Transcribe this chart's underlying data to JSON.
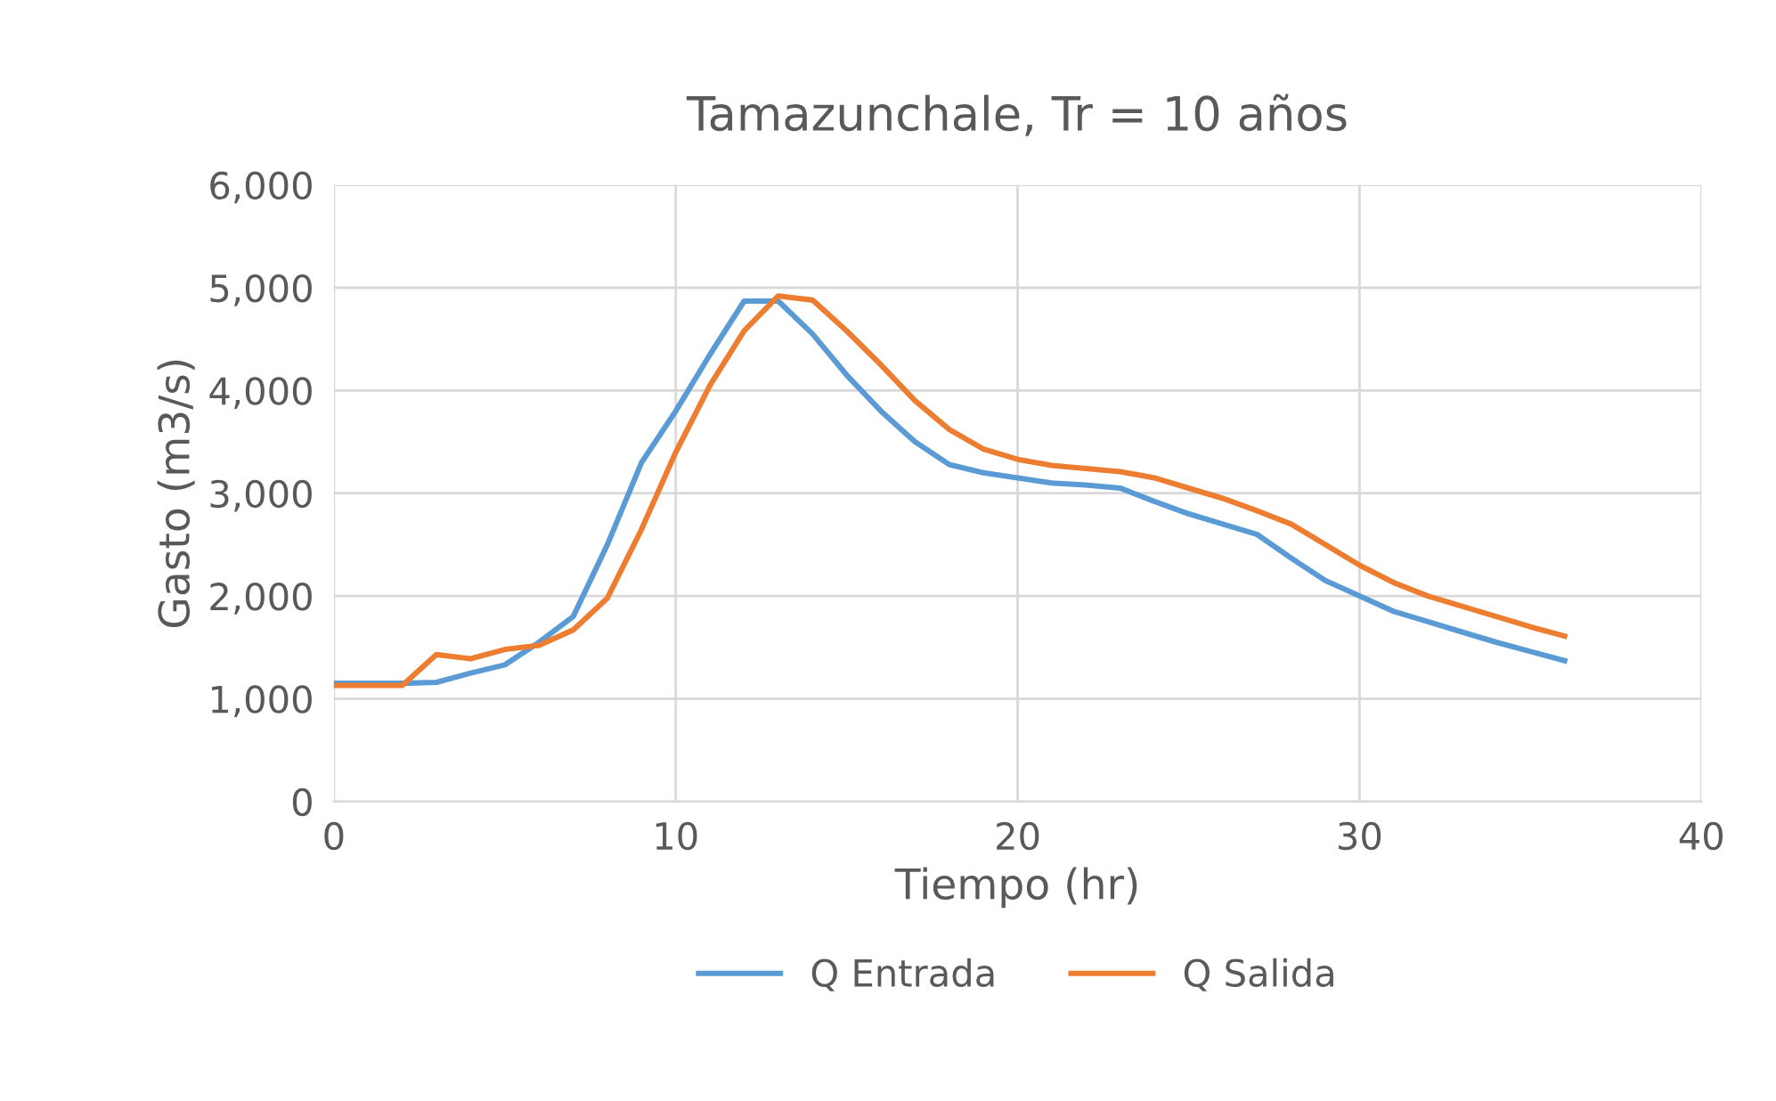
{
  "chart_data": {
    "type": "line",
    "title": "Tamazunchale, Tr = 10 años",
    "xlabel": "Tiempo (hr)",
    "ylabel": "Gasto (m3/s)",
    "x": [
      0,
      1,
      2,
      3,
      4,
      5,
      6,
      7,
      8,
      9,
      10,
      11,
      12,
      13,
      14,
      15,
      16,
      17,
      18,
      19,
      20,
      21,
      22,
      23,
      24,
      25,
      26,
      27,
      28,
      29,
      30,
      31,
      32,
      33,
      34,
      35,
      36
    ],
    "series": [
      {
        "name": "Q Entrada",
        "color": "#5b9bd5",
        "values": [
          1150,
          1150,
          1150,
          1160,
          1250,
          1330,
          1550,
          1800,
          2500,
          3300,
          3800,
          4350,
          4870,
          4870,
          4550,
          4150,
          3800,
          3500,
          3280,
          3200,
          3150,
          3100,
          3080,
          3050,
          2920,
          2800,
          2700,
          2600,
          2370,
          2150,
          2000,
          1850,
          1750,
          1650,
          1550,
          1460,
          1370
        ]
      },
      {
        "name": "Q Salida",
        "color": "#ed7d31",
        "values": [
          1130,
          1130,
          1130,
          1430,
          1390,
          1480,
          1520,
          1670,
          1980,
          2650,
          3400,
          4050,
          4580,
          4920,
          4880,
          4580,
          4250,
          3900,
          3620,
          3430,
          3330,
          3270,
          3240,
          3210,
          3150,
          3050,
          2950,
          2830,
          2700,
          2500,
          2300,
          2130,
          2000,
          1900,
          1800,
          1700,
          1610
        ]
      }
    ],
    "xlim": [
      0,
      40
    ],
    "xticks": [
      0,
      10,
      20,
      30,
      40
    ],
    "ylim": [
      0,
      6000
    ],
    "yticks": [
      {
        "value": 0,
        "label": "0"
      },
      {
        "value": 1000,
        "label": "1,000"
      },
      {
        "value": 2000,
        "label": "2,000"
      },
      {
        "value": 3000,
        "label": "3,000"
      },
      {
        "value": 4000,
        "label": "4,000"
      },
      {
        "value": 5000,
        "label": "5,000"
      },
      {
        "value": 6000,
        "label": "6,000"
      }
    ],
    "grid": true,
    "legend": "bottom",
    "marker": "none",
    "line_style": "solid"
  }
}
